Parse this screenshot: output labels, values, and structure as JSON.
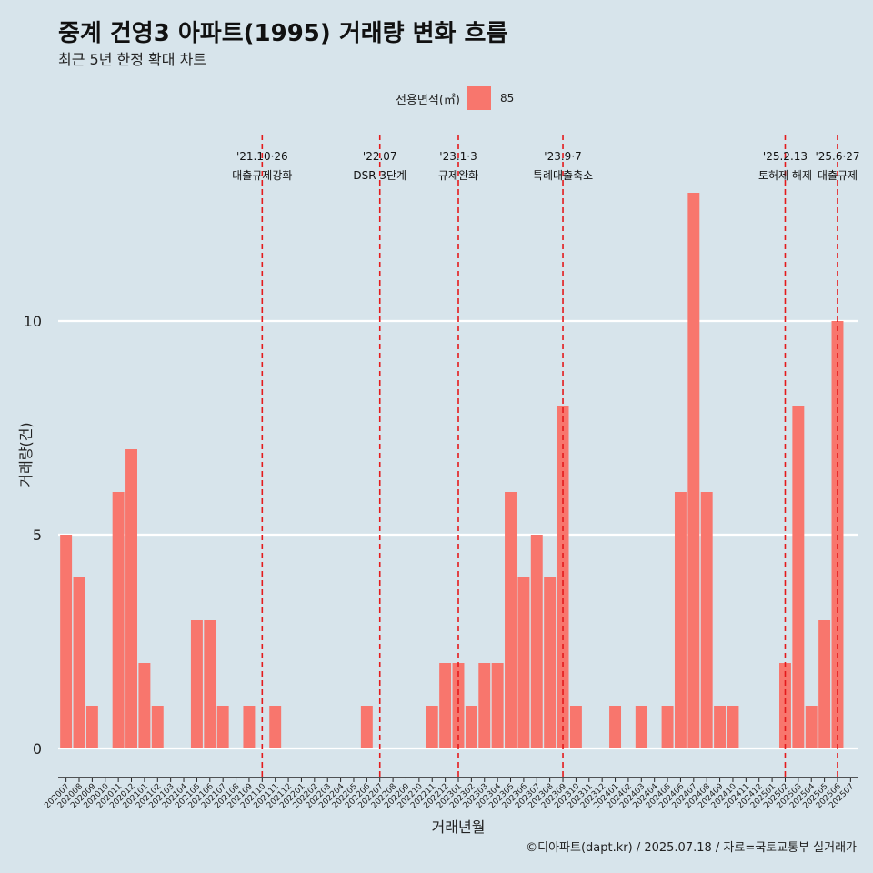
{
  "title": "중계 건영3 아파트(1995) 거래량 변화 흐름",
  "subtitle": "최근 5년 한정 확대 차트",
  "legend": {
    "title": "전용면적(㎡)",
    "item": "85",
    "color": "#f8766d"
  },
  "caption": "©디아파트(dapt.kr) / 2025.07.18 / 자료=국토교통부 실거래가",
  "chart_data": {
    "type": "bar",
    "xlabel": "거래년월",
    "ylabel": "거래량(건)",
    "ylim": [
      0,
      13
    ],
    "yticks": [
      0,
      5,
      10
    ],
    "grid": true,
    "legend_position": "top",
    "bar_color": "#f8766d",
    "categories": [
      "202007",
      "202008",
      "202009",
      "202010",
      "202011",
      "202012",
      "202101",
      "202102",
      "202103",
      "202104",
      "202105",
      "202106",
      "202107",
      "202108",
      "202109",
      "202110",
      "202111",
      "202112",
      "202201",
      "202202",
      "202203",
      "202204",
      "202205",
      "202206",
      "202207",
      "202208",
      "202209",
      "202210",
      "202211",
      "202212",
      "202301",
      "202302",
      "202303",
      "202304",
      "202305",
      "202306",
      "202307",
      "202308",
      "202309",
      "202310",
      "202311",
      "202312",
      "202401",
      "202402",
      "202403",
      "202404",
      "202405",
      "202406",
      "202407",
      "202408",
      "202409",
      "202410",
      "202411",
      "202412",
      "202501",
      "202502",
      "202503",
      "202504",
      "202505",
      "202506",
      "202507"
    ],
    "series": [
      {
        "values": [
          5,
          4,
          1,
          0,
          6,
          7,
          2,
          1,
          0,
          0,
          3,
          3,
          1,
          0,
          1,
          0,
          1,
          0,
          0,
          0,
          0,
          0,
          0,
          1,
          0,
          0,
          0,
          0,
          1,
          2,
          2,
          1,
          2,
          2,
          6,
          4,
          5,
          4,
          8,
          1,
          0,
          0,
          1,
          0,
          1,
          0,
          1,
          6,
          13,
          6,
          1,
          1,
          0,
          0,
          0,
          2,
          8,
          1,
          3,
          10,
          0
        ]
      }
    ],
    "annotations": [
      {
        "category": "202110",
        "date": "'21.10·26",
        "label": "대출규제강화"
      },
      {
        "category": "202207",
        "date": "'22.07",
        "label": "DSR 3단계"
      },
      {
        "category": "202301",
        "date": "'23.1·3",
        "label": "규제완화"
      },
      {
        "category": "202309",
        "date": "'23.9·7",
        "label": "특례대출축소"
      },
      {
        "category": "202502",
        "date": "'25.2.13",
        "label": "토허제 해제"
      },
      {
        "category": "202506",
        "date": "'25.6·27",
        "label": "대출규제"
      }
    ]
  }
}
